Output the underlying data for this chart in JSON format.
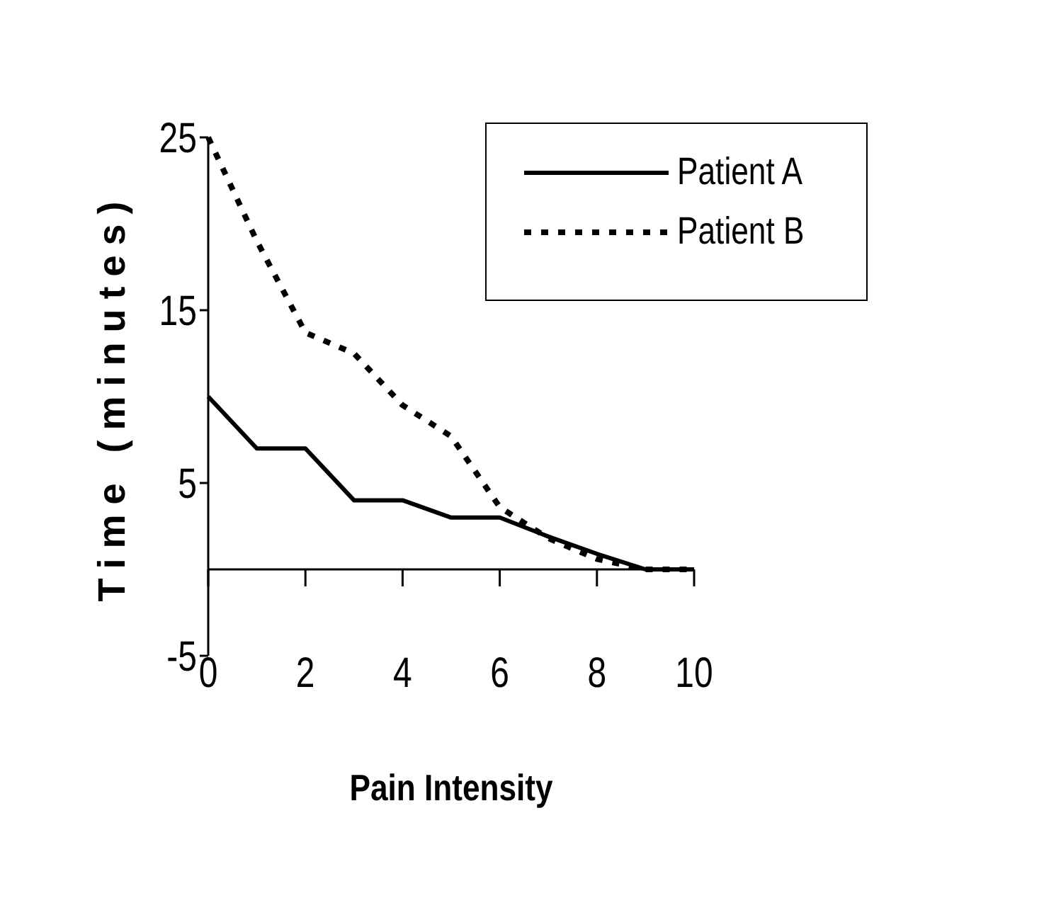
{
  "chart_data": {
    "type": "line",
    "xlabel": "Pain Intensity",
    "ylabel": "Time (minutes)",
    "x": [
      0,
      1,
      2,
      3,
      4,
      5,
      6,
      7,
      8,
      9,
      10
    ],
    "series": [
      {
        "name": "Patient A",
        "color": "#000000",
        "line_style": "solid",
        "values": [
          10,
          7,
          7,
          4,
          4,
          3,
          3,
          1.9,
          0.9,
          0,
          0
        ]
      },
      {
        "name": "Patient B",
        "color": "#000000",
        "line_style": "dotted",
        "values": [
          25,
          19,
          13.7,
          12.5,
          9.5,
          7.7,
          3.6,
          1.8,
          0.6,
          0,
          0
        ]
      }
    ],
    "xlim": [
      0,
      10
    ],
    "xticks": [
      0,
      2,
      4,
      6,
      8,
      10
    ],
    "ylim": [
      -5,
      25
    ],
    "yticks": [
      -5,
      5,
      15,
      25
    ],
    "grid": false,
    "legend": "top right",
    "marker": "none"
  }
}
